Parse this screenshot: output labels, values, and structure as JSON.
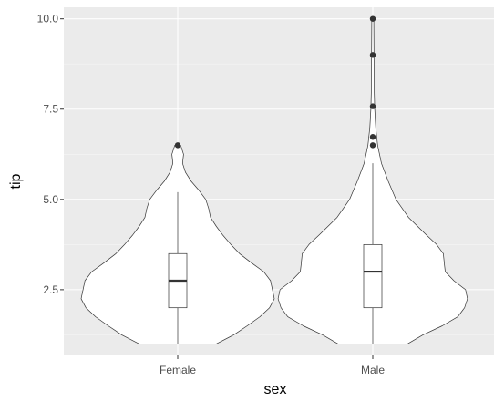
{
  "chart_data": {
    "type": "violin",
    "xlabel": "sex",
    "ylabel": "tip",
    "ylim": [
      0.68,
      10.32
    ],
    "yticks": [
      2.5,
      5.0,
      7.5,
      10.0
    ],
    "ytick_labels": [
      "2.5",
      "5.0",
      "7.5",
      "10.0"
    ],
    "grid": true,
    "categories": [
      "Female",
      "Male"
    ],
    "series": [
      {
        "category": "Female",
        "box": {
          "q1": 2.0,
          "median": 2.75,
          "q3": 3.5,
          "whisker_low": 1.0,
          "whisker_high": 5.2
        },
        "outliers": [
          6.5
        ],
        "density": [
          [
            1.0,
            0.4
          ],
          [
            1.25,
            0.58
          ],
          [
            1.5,
            0.72
          ],
          [
            1.75,
            0.85
          ],
          [
            2.0,
            0.95
          ],
          [
            2.25,
            1.0
          ],
          [
            2.5,
            0.98
          ],
          [
            2.75,
            0.96
          ],
          [
            3.0,
            0.89
          ],
          [
            3.25,
            0.76
          ],
          [
            3.5,
            0.64
          ],
          [
            3.75,
            0.55
          ],
          [
            4.0,
            0.47
          ],
          [
            4.25,
            0.4
          ],
          [
            4.5,
            0.34
          ],
          [
            4.75,
            0.32
          ],
          [
            5.0,
            0.29
          ],
          [
            5.25,
            0.22
          ],
          [
            5.5,
            0.14
          ],
          [
            5.75,
            0.08
          ],
          [
            6.0,
            0.05
          ],
          [
            6.25,
            0.06
          ],
          [
            6.5,
            0.03
          ]
        ]
      },
      {
        "category": "Male",
        "box": {
          "q1": 2.0,
          "median": 3.0,
          "q3": 3.75,
          "whisker_low": 1.0,
          "whisker_high": 6.0
        },
        "outliers": [
          6.5,
          6.73,
          7.58,
          9.0,
          10.0
        ],
        "density": [
          [
            1.0,
            0.36
          ],
          [
            1.25,
            0.52
          ],
          [
            1.5,
            0.72
          ],
          [
            1.75,
            0.88
          ],
          [
            2.0,
            0.95
          ],
          [
            2.25,
            0.98
          ],
          [
            2.5,
            0.96
          ],
          [
            2.75,
            0.84
          ],
          [
            3.0,
            0.75
          ],
          [
            3.25,
            0.74
          ],
          [
            3.5,
            0.73
          ],
          [
            3.75,
            0.66
          ],
          [
            4.0,
            0.56
          ],
          [
            4.5,
            0.37
          ],
          [
            5.0,
            0.24
          ],
          [
            5.5,
            0.16
          ],
          [
            6.0,
            0.09
          ],
          [
            6.5,
            0.05
          ],
          [
            7.0,
            0.03
          ],
          [
            7.5,
            0.02
          ],
          [
            8.0,
            0.015
          ],
          [
            9.0,
            0.012
          ],
          [
            10.0,
            0.01
          ]
        ]
      }
    ]
  }
}
